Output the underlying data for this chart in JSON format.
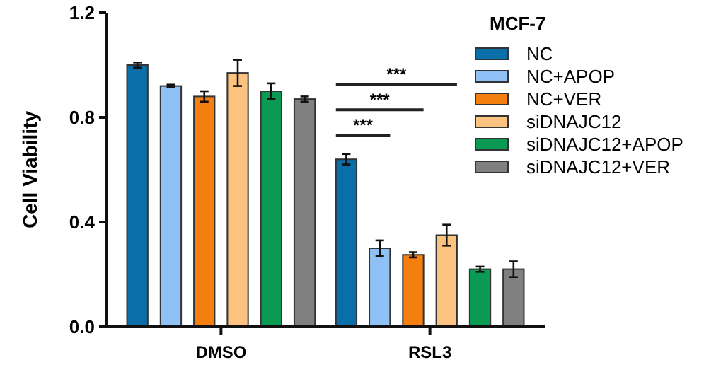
{
  "chart_data": {
    "type": "bar",
    "ylabel": "Cell Viability",
    "legend_title": "MCF-7",
    "categories": [
      "DMSO",
      "RSL3"
    ],
    "ylim": [
      0,
      1.2
    ],
    "yticks": [
      {
        "value": 0,
        "label": "0.0"
      },
      {
        "value": 0.4,
        "label": "0.4"
      },
      {
        "value": 0.8,
        "label": "0.8"
      },
      {
        "value": 1.2,
        "label": "1.2"
      }
    ],
    "legend": "top right",
    "grid": false,
    "series": [
      {
        "name": "NC",
        "color": "#0a6fa8",
        "values": [
          1.0,
          0.64
        ],
        "errors": [
          0.01,
          0.02
        ]
      },
      {
        "name": "NC+APOP",
        "color": "#8fc0f5",
        "values": [
          0.92,
          0.3
        ],
        "errors": [
          0.005,
          0.03
        ]
      },
      {
        "name": "NC+VER",
        "color": "#f57f0e",
        "values": [
          0.88,
          0.275
        ],
        "errors": [
          0.02,
          0.01
        ]
      },
      {
        "name": "siDNAJC12",
        "color": "#fcc27f",
        "values": [
          0.97,
          0.35
        ],
        "errors": [
          0.05,
          0.04
        ]
      },
      {
        "name": "siDNAJC12+APOP",
        "color": "#0b9a54",
        "values": [
          0.9,
          0.22
        ],
        "errors": [
          0.03,
          0.01
        ]
      },
      {
        "name": "siDNAJC12+VER",
        "color": "#808080",
        "values": [
          0.87,
          0.22
        ],
        "errors": [
          0.01,
          0.03
        ]
      }
    ],
    "annotations": [
      "***",
      "***",
      "***"
    ]
  }
}
